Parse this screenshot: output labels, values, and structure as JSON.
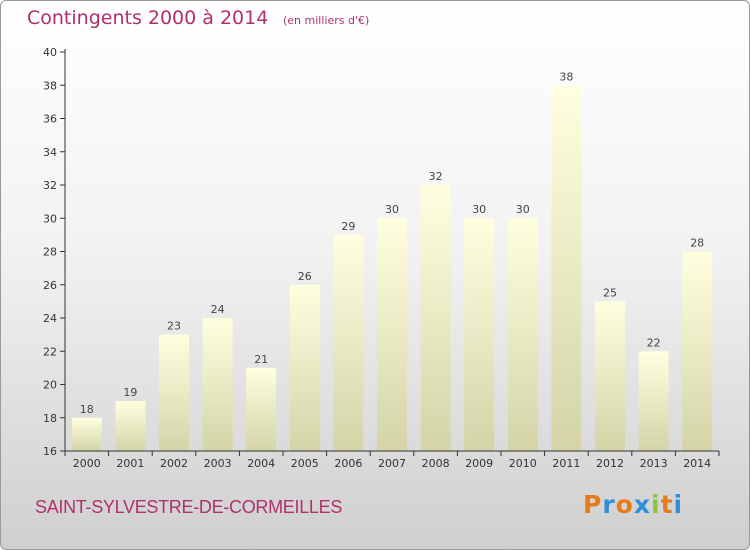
{
  "header": {
    "title": "Contingents 2000 à 2014",
    "unit": "(en milliers d'€)"
  },
  "footer": {
    "commune": "SAINT-SYLVESTRE-DE-CORMEILLES",
    "logo": "Proxiti",
    "logo_colors": [
      "#e87a1a",
      "#2f8fd6",
      "#e87a1a",
      "#2f8fd6",
      "#8cc63f",
      "#e87a1a",
      "#2f8fd6"
    ]
  },
  "colors": {
    "title": "#b0306c",
    "bar_top": "#ffffe0",
    "bar_bottom": "#d4d4a8",
    "axis": "#333333"
  },
  "chart_data": {
    "type": "bar",
    "title": "Contingents 2000 à 2014",
    "subtitle": "(en milliers d'€)",
    "categories": [
      "2000",
      "2001",
      "2002",
      "2003",
      "2004",
      "2005",
      "2006",
      "2007",
      "2008",
      "2009",
      "2010",
      "2011",
      "2012",
      "2013",
      "2014"
    ],
    "values": [
      18,
      19,
      23,
      24,
      21,
      26,
      29,
      30,
      32,
      30,
      30,
      38,
      25,
      22,
      28
    ],
    "ylim": [
      16,
      40
    ],
    "yticks": [
      16,
      18,
      20,
      22,
      24,
      26,
      28,
      30,
      32,
      34,
      36,
      38,
      40
    ],
    "xlabel": "",
    "ylabel": "",
    "grid": false,
    "legend": "none"
  }
}
